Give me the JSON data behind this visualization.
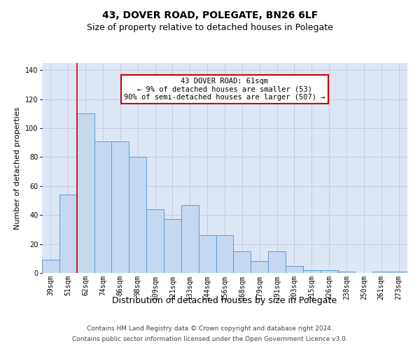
{
  "title": "43, DOVER ROAD, POLEGATE, BN26 6LF",
  "subtitle": "Size of property relative to detached houses in Polegate",
  "xlabel": "Distribution of detached houses by size in Polegate",
  "ylabel": "Number of detached properties",
  "categories": [
    "39sqm",
    "51sqm",
    "62sqm",
    "74sqm",
    "86sqm",
    "98sqm",
    "109sqm",
    "121sqm",
    "133sqm",
    "144sqm",
    "156sqm",
    "168sqm",
    "179sqm",
    "191sqm",
    "203sqm",
    "215sqm",
    "226sqm",
    "238sqm",
    "250sqm",
    "261sqm",
    "273sqm"
  ],
  "values": [
    9,
    54,
    110,
    91,
    91,
    80,
    44,
    37,
    47,
    26,
    26,
    15,
    8,
    15,
    5,
    2,
    2,
    1,
    0,
    1,
    1
  ],
  "bar_color": "#c5d8f0",
  "bar_edge_color": "#5b9bd5",
  "red_line_x": 1.5,
  "annotation_text": "43 DOVER ROAD: 61sqm\n← 9% of detached houses are smaller (53)\n90% of semi-detached houses are larger (507) →",
  "annotation_box_color": "#ffffff",
  "annotation_box_edge": "#cc0000",
  "ylim": [
    0,
    145
  ],
  "yticks": [
    0,
    20,
    40,
    60,
    80,
    100,
    120,
    140
  ],
  "grid_color": "#c0c8d8",
  "background_color": "#dce6f5",
  "footer1": "Contains HM Land Registry data © Crown copyright and database right 2024.",
  "footer2": "Contains public sector information licensed under the Open Government Licence v3.0.",
  "title_fontsize": 10,
  "subtitle_fontsize": 9,
  "xlabel_fontsize": 9,
  "ylabel_fontsize": 8,
  "tick_fontsize": 7,
  "annotation_fontsize": 7.5,
  "footer_fontsize": 6.5
}
